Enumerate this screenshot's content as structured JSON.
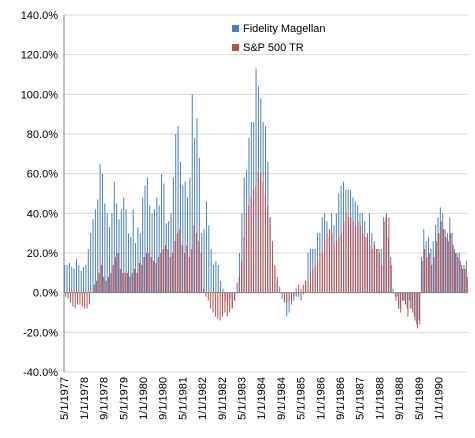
{
  "chart_data": {
    "type": "bar",
    "ylim": [
      -40,
      140
    ],
    "yticks": [
      -40,
      -20,
      0,
      20,
      40,
      60,
      80,
      100,
      120,
      140
    ],
    "ytick_labels": [
      "-40.0%",
      "-20.0%",
      "0.0%",
      "20.0%",
      "40.0%",
      "60.0%",
      "80.0%",
      "100.0%",
      "120.0%",
      "140.0%"
    ],
    "x_start": "1977-05",
    "x_end": "1990-12",
    "xtick_labels": [
      "5/1/1977",
      "1/1/1978",
      "9/1/1978",
      "5/1/1979",
      "1/1/1980",
      "9/1/1980",
      "5/1/1981",
      "1/1/1982",
      "9/1/1982",
      "5/1/1983",
      "1/1/1984",
      "9/1/1984",
      "5/1/1985",
      "1/1/1986",
      "9/1/1986",
      "5/1/1987",
      "1/1/1988",
      "9/1/1988",
      "5/1/1989",
      "1/1/1990"
    ],
    "legend_position": "top-center",
    "grid": true,
    "series": [
      {
        "name": "Fidelity Magellan",
        "color": "#4f81bd",
        "values": [
          14,
          14,
          15,
          13,
          12,
          17,
          14,
          11,
          13,
          14,
          22,
          30,
          37,
          42,
          47,
          65,
          60,
          45,
          40,
          33,
          40,
          56,
          45,
          37,
          42,
          48,
          42,
          30,
          28,
          42,
          25,
          33,
          30,
          48,
          54,
          58,
          44,
          40,
          42,
          48,
          44,
          60,
          55,
          35,
          36,
          40,
          58,
          80,
          84,
          66,
          54,
          56,
          48,
          58,
          100,
          78,
          88,
          68,
          30,
          32,
          46,
          34,
          22,
          14,
          16,
          14,
          6,
          2,
          -4,
          -6,
          -3,
          -8,
          -4,
          5,
          20,
          40,
          58,
          62,
          78,
          86,
          86,
          113,
          104,
          98,
          86,
          84,
          66,
          38,
          22,
          12,
          8,
          3,
          -3,
          -5,
          -12,
          -10,
          -6,
          -4,
          2,
          -2,
          -4,
          -1,
          6,
          20,
          22,
          22,
          22,
          30,
          30,
          38,
          40,
          36,
          28,
          40,
          34,
          40,
          50,
          54,
          56,
          52,
          52,
          52,
          48,
          46,
          44,
          40,
          40,
          36,
          28,
          40,
          30,
          26,
          22,
          22,
          22,
          38,
          38,
          28,
          18,
          2,
          -2,
          -2,
          -8,
          -4,
          -4,
          -8,
          -4,
          -8,
          -12,
          -16,
          -14,
          18,
          32,
          26,
          28,
          22,
          26,
          34,
          38,
          43,
          40,
          32,
          30,
          38,
          30,
          22,
          20,
          20,
          14,
          14,
          16
        ]
      },
      {
        "name": "S&P 500 TR",
        "color": "#c0504d",
        "values": [
          -2,
          -3,
          -5,
          -7,
          -8,
          -6,
          -6,
          -7,
          -8,
          -8,
          -6,
          0,
          4,
          6,
          10,
          14,
          8,
          6,
          8,
          10,
          14,
          18,
          20,
          12,
          10,
          10,
          10,
          8,
          10,
          12,
          10,
          15,
          14,
          18,
          20,
          20,
          18,
          16,
          15,
          18,
          20,
          22,
          24,
          22,
          18,
          20,
          26,
          30,
          32,
          24,
          20,
          24,
          18,
          22,
          34,
          30,
          26,
          20,
          2,
          -2,
          -4,
          -8,
          -10,
          -12,
          -13,
          -14,
          -12,
          -10,
          -12,
          -10,
          -8,
          -4,
          0,
          8,
          16,
          28,
          40,
          44,
          48,
          52,
          54,
          61,
          60,
          56,
          50,
          44,
          38,
          26,
          14,
          6,
          0,
          0,
          -4,
          -5,
          -4,
          -4,
          -2,
          -2,
          4,
          2,
          4,
          6,
          6,
          10,
          12,
          14,
          16,
          20,
          20,
          26,
          30,
          32,
          30,
          24,
          26,
          28,
          30,
          36,
          40,
          38,
          38,
          36,
          34,
          36,
          34,
          30,
          28,
          30,
          24,
          22,
          24,
          22,
          20,
          14,
          36,
          40,
          38,
          14,
          0,
          -4,
          -8,
          -10,
          -4,
          -6,
          -12,
          -8,
          -10,
          -14,
          -18,
          -16,
          16,
          22,
          18,
          20,
          14,
          18,
          26,
          30,
          36,
          32,
          28,
          26,
          30,
          24,
          20,
          18,
          16,
          12,
          12,
          8
        ]
      }
    ]
  }
}
